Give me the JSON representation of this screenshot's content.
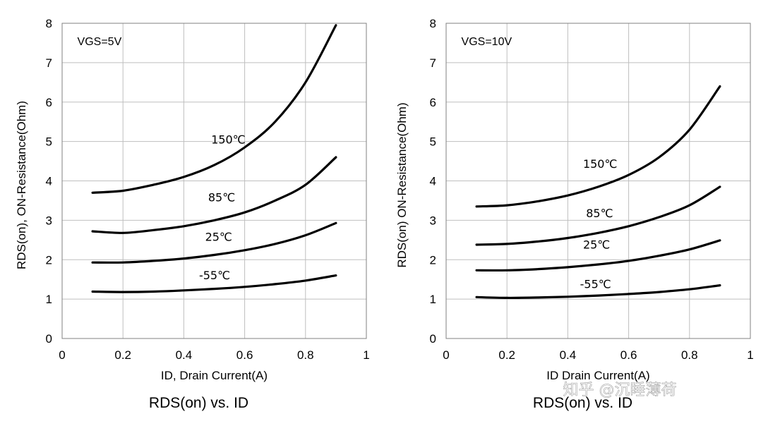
{
  "chart_data": [
    {
      "type": "line",
      "title": "RDS(on) vs.  ID",
      "xlabel": "ID, Drain Current(A)",
      "ylabel": "RDS(on), ON-Resistance(Ohm)",
      "annotation": "VGS=5V",
      "xlim": [
        0,
        1
      ],
      "ylim": [
        0,
        8
      ],
      "xticks": [
        "0",
        "0.2",
        "0.4",
        "0.6",
        "0.8",
        "1"
      ],
      "yticks": [
        "0",
        "1",
        "2",
        "3",
        "4",
        "5",
        "6",
        "7",
        "8"
      ],
      "grid": true,
      "series": [
        {
          "name": "150℃",
          "x": [
            0.1,
            0.2,
            0.3,
            0.4,
            0.5,
            0.6,
            0.7,
            0.8,
            0.9
          ],
          "y": [
            3.7,
            3.75,
            3.9,
            4.1,
            4.4,
            4.85,
            5.5,
            6.5,
            7.95
          ]
        },
        {
          "name": "85℃",
          "x": [
            0.1,
            0.2,
            0.3,
            0.4,
            0.5,
            0.6,
            0.7,
            0.8,
            0.9
          ],
          "y": [
            2.72,
            2.68,
            2.75,
            2.85,
            3.0,
            3.2,
            3.5,
            3.9,
            4.6
          ]
        },
        {
          "name": "25℃",
          "x": [
            0.1,
            0.2,
            0.3,
            0.4,
            0.5,
            0.6,
            0.7,
            0.8,
            0.9
          ],
          "y": [
            1.93,
            1.93,
            1.97,
            2.03,
            2.12,
            2.24,
            2.4,
            2.62,
            2.93
          ]
        },
        {
          "name": "-55℃",
          "x": [
            0.1,
            0.2,
            0.3,
            0.4,
            0.5,
            0.6,
            0.7,
            0.8,
            0.9
          ],
          "y": [
            1.19,
            1.18,
            1.19,
            1.22,
            1.26,
            1.31,
            1.38,
            1.47,
            1.6
          ]
        }
      ]
    },
    {
      "type": "line",
      "title": "RDS(on) vs.  ID",
      "xlabel": "ID Drain Current(A)",
      "ylabel": "RDS(on) ON-Resistance(Ohm)",
      "annotation": "VGS=10V",
      "xlim": [
        0,
        1
      ],
      "ylim": [
        0,
        8
      ],
      "xticks": [
        "0",
        "0.2",
        "0.4",
        "0.6",
        "0.8",
        "1"
      ],
      "yticks": [
        "0",
        "1",
        "2",
        "3",
        "4",
        "5",
        "6",
        "7",
        "8"
      ],
      "grid": true,
      "series": [
        {
          "name": "150℃",
          "x": [
            0.1,
            0.2,
            0.3,
            0.4,
            0.5,
            0.6,
            0.7,
            0.8,
            0.9
          ],
          "y": [
            3.35,
            3.38,
            3.48,
            3.63,
            3.85,
            4.15,
            4.6,
            5.3,
            6.4
          ]
        },
        {
          "name": "85℃",
          "x": [
            0.1,
            0.2,
            0.3,
            0.4,
            0.5,
            0.6,
            0.7,
            0.8,
            0.9
          ],
          "y": [
            2.38,
            2.4,
            2.46,
            2.55,
            2.68,
            2.85,
            3.08,
            3.38,
            3.85
          ]
        },
        {
          "name": "25℃",
          "x": [
            0.1,
            0.2,
            0.3,
            0.4,
            0.5,
            0.6,
            0.7,
            0.8,
            0.9
          ],
          "y": [
            1.73,
            1.73,
            1.76,
            1.81,
            1.88,
            1.97,
            2.1,
            2.26,
            2.49
          ]
        },
        {
          "name": "-55℃",
          "x": [
            0.1,
            0.2,
            0.3,
            0.4,
            0.5,
            0.6,
            0.7,
            0.8,
            0.9
          ],
          "y": [
            1.05,
            1.03,
            1.04,
            1.06,
            1.09,
            1.13,
            1.18,
            1.25,
            1.35
          ]
        }
      ]
    }
  ],
  "watermark": "知乎 @沉睡薄荷"
}
